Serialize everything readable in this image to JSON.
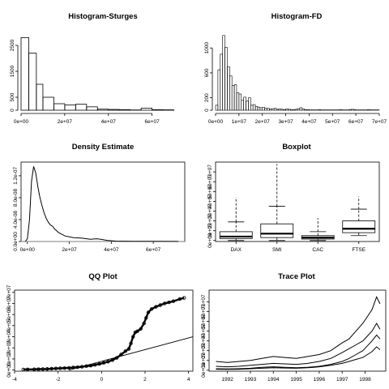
{
  "chart_data": [
    {
      "type": "bar",
      "title": "Histogram-Sturges",
      "xlim": [
        0,
        75000000
      ],
      "ylim": [
        0,
        3000
      ],
      "bin_edges": [
        0,
        3500000,
        7000000,
        10000000,
        15000000,
        20000000,
        25000000,
        30000000,
        35000000,
        40000000,
        45000000,
        50000000,
        55000000,
        60000000,
        65000000,
        70000000
      ],
      "values": [
        2800,
        2200,
        1000,
        500,
        250,
        200,
        230,
        130,
        40,
        30,
        20,
        10,
        80,
        20,
        15
      ],
      "x_ticks": [
        0,
        20000000,
        40000000,
        60000000
      ],
      "x_tick_labels": [
        "0e+00",
        "2e+07",
        "4e+07",
        "6e+07"
      ],
      "y_ticks": [
        0,
        500,
        1500,
        2500
      ],
      "y_tick_labels": [
        "0",
        "500",
        "1500",
        "2500"
      ]
    },
    {
      "type": "bar",
      "title": "Histogram-FD",
      "xlim": [
        0,
        70000000
      ],
      "ylim": [
        0,
        1250
      ],
      "bin_start": 0,
      "bin_width": 1000000,
      "values": [
        80,
        650,
        900,
        1200,
        1010,
        700,
        550,
        400,
        410,
        280,
        260,
        160,
        210,
        150,
        200,
        80,
        90,
        60,
        50,
        40,
        45,
        30,
        30,
        20,
        25,
        30,
        15,
        20,
        15,
        10,
        20,
        15,
        10,
        10,
        15,
        25,
        40,
        20,
        10,
        10,
        5,
        5,
        5,
        5,
        10,
        5,
        5,
        5,
        5,
        5,
        5,
        5,
        5,
        10,
        5,
        5,
        5,
        10,
        15,
        10,
        5,
        5,
        5,
        5,
        5,
        10,
        5,
        5,
        5,
        5
      ],
      "x_ticks": [
        0,
        10000000,
        20000000,
        30000000,
        40000000,
        50000000,
        60000000,
        70000000
      ],
      "x_tick_labels": [
        "0e+00",
        "1e+07",
        "2e+07",
        "3e+07",
        "4e+07",
        "5e+07",
        "6e+07",
        "7e+07"
      ],
      "y_ticks": [
        0,
        200,
        600,
        1000
      ],
      "y_tick_labels": [
        "0",
        "200",
        "600",
        "1000"
      ]
    },
    {
      "type": "line",
      "title": "Density Estimate",
      "xlim": [
        -3000000,
        75000000
      ],
      "ylim": [
        0,
        1.45e-07
      ],
      "x": [
        -1000000,
        0,
        1000000,
        2000000,
        3000000,
        4000000,
        5000000,
        6000000,
        7000000,
        8000000,
        9000000,
        10000000,
        11000000,
        12000000,
        13000000,
        15000000,
        18000000,
        22000000,
        26000000,
        30000000,
        33000000,
        35000000,
        38000000,
        42000000,
        50000000,
        60000000,
        72000000
      ],
      "y": [
        0.0,
        5e-09,
        4e-08,
        1.1e-07,
        1.37e-07,
        1.25e-07,
        1e-07,
        8e-08,
        6.5e-08,
        5.2e-08,
        4.2e-08,
        3.5e-08,
        3e-08,
        2.8e-08,
        2.3e-08,
        1.6e-08,
        1e-08,
        7e-09,
        6e-09,
        4e-09,
        5e-09,
        4e-09,
        2e-09,
        8e-10,
        5e-10,
        3e-10,
        2e-10
      ],
      "x_ticks": [
        0,
        20000000,
        40000000,
        60000000
      ],
      "x_tick_labels": [
        "0e+00",
        "2e+07",
        "4e+07",
        "6e+07"
      ],
      "y_ticks": [
        0,
        4e-08,
        8e-08,
        1.2e-07
      ],
      "y_tick_labels": [
        "0.0e+00",
        "4.0e-08",
        "8.0e-08",
        "1.2e-07"
      ]
    },
    {
      "type": "boxplot",
      "title": "Boxplot",
      "ylim": [
        -1000000,
        80000000
      ],
      "categories": [
        "DAX",
        "SMI",
        "CAC",
        "FTSE"
      ],
      "boxes": [
        {
          "lower_whisker": 0,
          "q1": 2000000,
          "median": 4000000,
          "q3": 9000000,
          "upper_whisker": 19000000,
          "outlier_max": 44000000
        },
        {
          "lower_whisker": 0,
          "q1": 3000000,
          "median": 7000000,
          "q3": 17000000,
          "upper_whisker": 35000000,
          "outlier_max": 78000000
        },
        {
          "lower_whisker": 0,
          "q1": 1500000,
          "median": 3000000,
          "q3": 5000000,
          "upper_whisker": 9000000,
          "outlier_max": 23000000
        },
        {
          "lower_whisker": 5000000,
          "q1": 8000000,
          "median": 12000000,
          "q3": 20000000,
          "upper_whisker": 32000000,
          "outlier_max": 45000000
        }
      ],
      "y_ticks": [
        0,
        10000000,
        20000000,
        30000000,
        40000000,
        50000000,
        60000000,
        70000000
      ],
      "y_tick_labels": [
        "0e+00",
        "1e+07",
        "2e+07",
        "3e+07",
        "4e+07",
        "5e+07",
        "6e+07",
        "7e+07"
      ]
    },
    {
      "type": "scatter",
      "title": "QQ Plot",
      "xlim": [
        -4,
        4.2
      ],
      "ylim": [
        -1000000,
        72000000
      ],
      "points": [
        [
          -3.6,
          500000
        ],
        [
          -3.4,
          600000
        ],
        [
          -3.1,
          700000
        ],
        [
          -2.9,
          800000
        ],
        [
          -2.7,
          900000
        ],
        [
          -2.5,
          1000000
        ],
        [
          -2.3,
          1200000
        ],
        [
          -2.1,
          1400000
        ],
        [
          -1.9,
          1600000
        ],
        [
          -1.7,
          1800000
        ],
        [
          -1.5,
          2000000
        ],
        [
          -1.3,
          2300000
        ],
        [
          -1.1,
          2600000
        ],
        [
          -0.9,
          3000000
        ],
        [
          -0.7,
          3500000
        ],
        [
          -0.5,
          4000000
        ],
        [
          -0.3,
          4700000
        ],
        [
          -0.1,
          5500000
        ],
        [
          0.1,
          6500000
        ],
        [
          0.3,
          7500000
        ],
        [
          0.5,
          9000000
        ],
        [
          0.7,
          11000000
        ],
        [
          0.9,
          14000000
        ],
        [
          1.1,
          17000000
        ],
        [
          1.25,
          19000000
        ],
        [
          1.35,
          24000000
        ],
        [
          1.45,
          30000000
        ],
        [
          1.55,
          34000000
        ],
        [
          1.65,
          35000000
        ],
        [
          1.8,
          37000000
        ],
        [
          1.95,
          42000000
        ],
        [
          2.05,
          47000000
        ],
        [
          2.15,
          52000000
        ],
        [
          2.3,
          55000000
        ],
        [
          2.5,
          57000000
        ],
        [
          2.7,
          58500000
        ],
        [
          2.9,
          60000000
        ],
        [
          3.1,
          61000000
        ],
        [
          3.3,
          62000000
        ],
        [
          3.6,
          64000000
        ],
        [
          3.8,
          65000000
        ]
      ],
      "reference_line": [
        [
          -1.5,
          0
        ],
        [
          4.2,
          30000000
        ]
      ],
      "x_ticks": [
        -4,
        -2,
        0,
        2,
        4
      ],
      "x_tick_labels": [
        "-4",
        "-2",
        "0",
        "2",
        "4"
      ],
      "y_ticks": [
        0,
        10000000,
        20000000,
        30000000,
        40000000,
        50000000,
        60000000,
        70000000
      ],
      "y_tick_labels": [
        "0e+00",
        "1e+07",
        "2e+07",
        "3e+07",
        "4e+07",
        "5e+07",
        "6e+07",
        "7e+07"
      ]
    },
    {
      "type": "line",
      "title": "Trace Plot",
      "xlim": [
        1991.2,
        1998.9
      ],
      "ylim": [
        -1000000,
        82000000
      ],
      "series": [
        {
          "x": [
            1991.5,
            1992.0,
            1992.5,
            1993.0,
            1993.5,
            1994.0,
            1994.5,
            1995.0,
            1995.5,
            1996.0,
            1996.5,
            1997.0,
            1997.3,
            1997.6,
            1997.9,
            1998.1,
            1998.3,
            1998.5,
            1998.65
          ],
          "y": [
            9000000,
            8000000,
            9000000,
            10000000,
            12000000,
            14000000,
            13000000,
            12000000,
            14000000,
            16000000,
            20000000,
            28000000,
            32000000,
            40000000,
            48000000,
            55000000,
            62000000,
            75000000,
            68000000
          ]
        },
        {
          "x": [
            1991.5,
            1992.0,
            1992.5,
            1993.0,
            1993.5,
            1994.0,
            1994.5,
            1995.0,
            1995.5,
            1996.0,
            1996.5,
            1997.0,
            1997.3,
            1997.6,
            1997.9,
            1998.1,
            1998.3,
            1998.5,
            1998.65
          ],
          "y": [
            4000000,
            3500000,
            4000000,
            5000000,
            6000000,
            7000000,
            6500000,
            6000000,
            7000000,
            9000000,
            12000000,
            18000000,
            22000000,
            26000000,
            30000000,
            35000000,
            40000000,
            48000000,
            42000000
          ]
        },
        {
          "x": [
            1991.5,
            1992.0,
            1992.5,
            1993.0,
            1993.5,
            1994.0,
            1994.5,
            1995.0,
            1995.5,
            1996.0,
            1996.5,
            1997.0,
            1997.3,
            1997.6,
            1997.9,
            1998.1,
            1998.3,
            1998.5,
            1998.65
          ],
          "y": [
            1500000,
            1200000,
            1500000,
            2000000,
            3000000,
            3500000,
            3000000,
            2500000,
            3000000,
            4000000,
            6000000,
            9000000,
            12000000,
            16000000,
            20000000,
            25000000,
            30000000,
            36000000,
            32000000
          ]
        },
        {
          "x": [
            1991.5,
            1992.0,
            1992.5,
            1993.0,
            1993.5,
            1994.0,
            1994.5,
            1995.0,
            1995.5,
            1996.0,
            1996.5,
            1997.0,
            1997.3,
            1997.6,
            1997.9,
            1998.1,
            1998.3,
            1998.5,
            1998.65
          ],
          "y": [
            1000000,
            800000,
            1000000,
            1500000,
            2000000,
            2500000,
            2200000,
            2000000,
            2500000,
            3500000,
            5000000,
            7000000,
            9000000,
            11000000,
            13000000,
            16000000,
            19000000,
            24000000,
            21000000
          ]
        }
      ],
      "x_ticks": [
        1992,
        1993,
        1994,
        1995,
        1996,
        1997,
        1998
      ],
      "x_tick_labels": [
        "1992",
        "1993",
        "1994",
        "1995",
        "1996",
        "1997",
        "1998"
      ],
      "y_ticks": [
        0,
        10000000,
        20000000,
        30000000,
        40000000,
        50000000,
        60000000,
        70000000
      ],
      "y_tick_labels": [
        "0e+00",
        "1e+07",
        "2e+07",
        "3e+07",
        "4e+07",
        "5e+07",
        "6e+07",
        "7e+07"
      ]
    }
  ]
}
